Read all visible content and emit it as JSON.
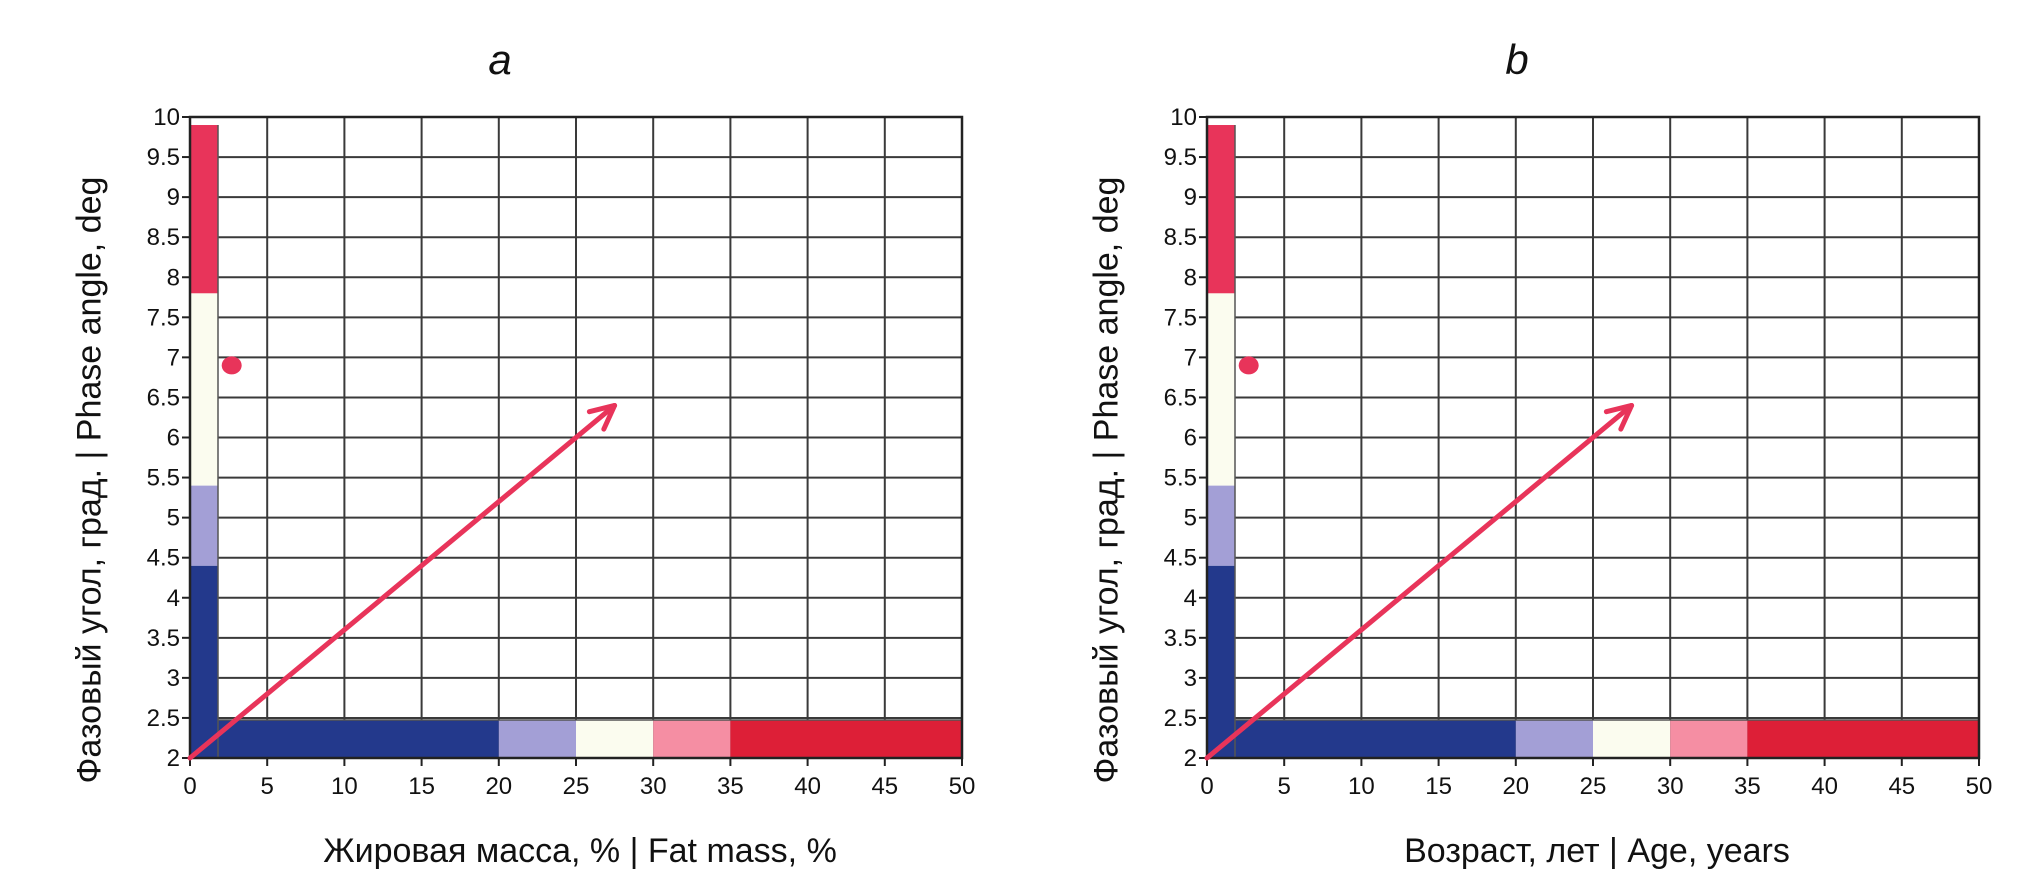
{
  "chart_data": [
    {
      "type": "scatter",
      "panel_letter": "a",
      "xlabel": "Жировая масса, % | Fat mass, %",
      "ylabel": "Фазовый угол, град. | Phase angle, deg",
      "xlim": [
        0,
        50
      ],
      "ylim": [
        2,
        10
      ],
      "xticks": [
        0,
        5,
        10,
        15,
        20,
        25,
        30,
        35,
        40,
        45,
        50
      ],
      "xtick_labels": [
        "0",
        "5",
        "10",
        "15",
        "20",
        "25",
        "30",
        "35",
        "40",
        "45",
        "50"
      ],
      "yticks": [
        2,
        2.5,
        3,
        3.5,
        4,
        4.5,
        5,
        5.5,
        6,
        6.5,
        7,
        7.5,
        8,
        8.5,
        9,
        9.5,
        10
      ],
      "ytick_labels": [
        "2",
        "2.5",
        "3",
        "3.5",
        "4",
        "4.5",
        "5",
        "5.5",
        "6",
        "6.5",
        "7",
        "7.5",
        "8",
        "8.5",
        "9",
        "9.5",
        "10"
      ],
      "grid": true,
      "x_band": [
        {
          "from": 0,
          "to": 20,
          "color": "#23398c"
        },
        {
          "from": 20,
          "to": 25,
          "color": "#a39fd6"
        },
        {
          "from": 25,
          "to": 30,
          "color": "#fbfcef"
        },
        {
          "from": 30,
          "to": 35,
          "color": "#f58ea3"
        },
        {
          "from": 35,
          "to": 50,
          "color": "#dd1f37"
        }
      ],
      "y_band": [
        {
          "from": 2,
          "to": 4.4,
          "color": "#23398c"
        },
        {
          "from": 4.4,
          "to": 5.4,
          "color": "#a39fd6"
        },
        {
          "from": 5.4,
          "to": 7.8,
          "color": "#fbfcef"
        },
        {
          "from": 7.8,
          "to": 9.9,
          "color": "#e8345a"
        }
      ],
      "point": {
        "x": 2.7,
        "y": 6.9,
        "color": "#e8345a"
      },
      "arrow": {
        "from": [
          0,
          2
        ],
        "to": [
          27.5,
          6.4
        ],
        "color": "#e8345a"
      }
    },
    {
      "type": "scatter",
      "panel_letter": "b",
      "xlabel": "Возраст, лет | Age, years",
      "ylabel": "Фазовый угол, град. | Phase angle, deg",
      "xlim": [
        0,
        50
      ],
      "ylim": [
        2,
        10
      ],
      "xticks": [
        0,
        5,
        10,
        15,
        20,
        25,
        30,
        35,
        40,
        45,
        50
      ],
      "xtick_labels": [
        "0",
        "5",
        "10",
        "15",
        "20",
        "25",
        "30",
        "35",
        "40",
        "45",
        "50"
      ],
      "yticks": [
        2,
        2.5,
        3,
        3.5,
        4,
        4.5,
        5,
        5.5,
        6,
        6.5,
        7,
        7.5,
        8,
        8.5,
        9,
        9.5,
        10
      ],
      "ytick_labels": [
        "2",
        "2.5",
        "3",
        "3.5",
        "4",
        "4.5",
        "5",
        "5.5",
        "6",
        "6.5",
        "7",
        "7.5",
        "8",
        "8.5",
        "9",
        "9.5",
        "10"
      ],
      "grid": true,
      "x_band": [
        {
          "from": 0,
          "to": 20,
          "color": "#23398c"
        },
        {
          "from": 20,
          "to": 25,
          "color": "#a39fd6"
        },
        {
          "from": 25,
          "to": 30,
          "color": "#fbfcef"
        },
        {
          "from": 30,
          "to": 35,
          "color": "#f58ea3"
        },
        {
          "from": 35,
          "to": 50,
          "color": "#dd1f37"
        }
      ],
      "y_band": [
        {
          "from": 2,
          "to": 4.4,
          "color": "#23398c"
        },
        {
          "from": 4.4,
          "to": 5.4,
          "color": "#a39fd6"
        },
        {
          "from": 5.4,
          "to": 7.8,
          "color": "#fbfcef"
        },
        {
          "from": 7.8,
          "to": 9.9,
          "color": "#e8345a"
        }
      ],
      "point": {
        "x": 2.7,
        "y": 6.9,
        "color": "#e8345a"
      },
      "arrow": {
        "from": [
          0,
          2
        ],
        "to": [
          27.5,
          6.4
        ],
        "color": "#e8345a"
      }
    }
  ]
}
